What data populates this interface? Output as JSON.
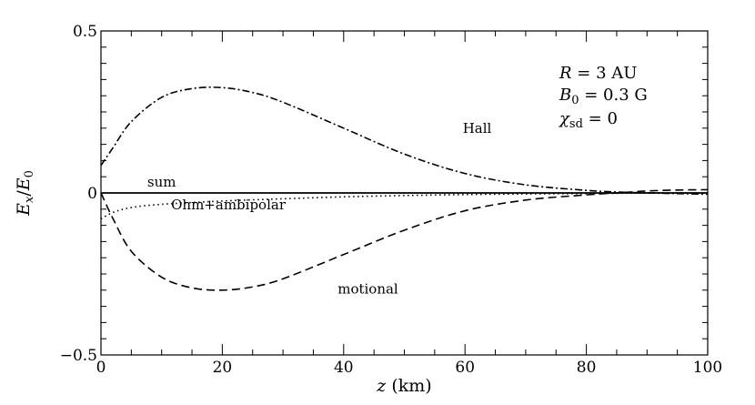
{
  "chart_data": {
    "type": "line",
    "xlim": [
      0,
      100
    ],
    "ylim": [
      -0.5,
      0.5
    ],
    "xticks": [
      0,
      20,
      40,
      60,
      80,
      100
    ],
    "xtick_labels": [
      "0",
      "20",
      "40",
      "60",
      "80",
      "100"
    ],
    "yticks": [
      -0.5,
      0,
      0.5
    ],
    "ytick_labels": [
      "−0.5",
      "0",
      "0.5"
    ],
    "xlabel": {
      "var": "z",
      "unit": "(km)"
    },
    "ylabel": {
      "num": "E",
      "num_sub": "x",
      "slash": "/",
      "den": "E",
      "den_sub": "0"
    },
    "grid": false,
    "annotations": [
      {
        "var": "R",
        "rest": " = 3 AU"
      },
      {
        "var": "B",
        "sub": "0",
        "rest": " = 0.3 G"
      },
      {
        "var": "χ",
        "sub": "sd",
        "rest": " = 0"
      }
    ],
    "series": [
      {
        "name": "Hall",
        "style": "dashdot",
        "x": [
          0,
          2,
          5,
          10,
          15,
          20,
          25,
          30,
          40,
          50,
          60,
          70,
          80,
          85,
          90,
          95,
          100
        ],
        "y": [
          0.085,
          0.14,
          0.22,
          0.295,
          0.322,
          0.325,
          0.31,
          0.28,
          0.2,
          0.12,
          0.06,
          0.025,
          0.008,
          0.003,
          0.0,
          -0.002,
          -0.004
        ]
      },
      {
        "name": "sum",
        "style": "solid",
        "x": [
          0,
          100
        ],
        "y": [
          0,
          0
        ]
      },
      {
        "name": "Ohm+ambipolar",
        "style": "dotted",
        "x": [
          0,
          2,
          5,
          10,
          20,
          30,
          40,
          50,
          60,
          70,
          80,
          85,
          90,
          95,
          100
        ],
        "y": [
          -0.08,
          -0.06,
          -0.045,
          -0.035,
          -0.025,
          -0.018,
          -0.012,
          -0.008,
          -0.005,
          -0.003,
          -0.002,
          -0.001,
          0.0,
          0.0,
          0.0
        ]
      },
      {
        "name": "motional",
        "style": "dashed",
        "x": [
          0,
          2,
          5,
          10,
          15,
          20,
          25,
          30,
          40,
          50,
          60,
          70,
          80,
          85,
          90,
          95,
          100
        ],
        "y": [
          0,
          -0.08,
          -0.18,
          -0.26,
          -0.293,
          -0.3,
          -0.29,
          -0.265,
          -0.19,
          -0.115,
          -0.055,
          -0.022,
          -0.006,
          0.0,
          0.006,
          0.009,
          0.01
        ]
      }
    ],
    "labels": [
      {
        "text": "Hall",
        "x": 62,
        "y": 0.185
      },
      {
        "text": "sum",
        "x": 10,
        "y": 0.02
      },
      {
        "text": "Ohm+ambipolar",
        "x": 21,
        "y": -0.05
      },
      {
        "text": "motional",
        "x": 44,
        "y": -0.31
      }
    ]
  }
}
